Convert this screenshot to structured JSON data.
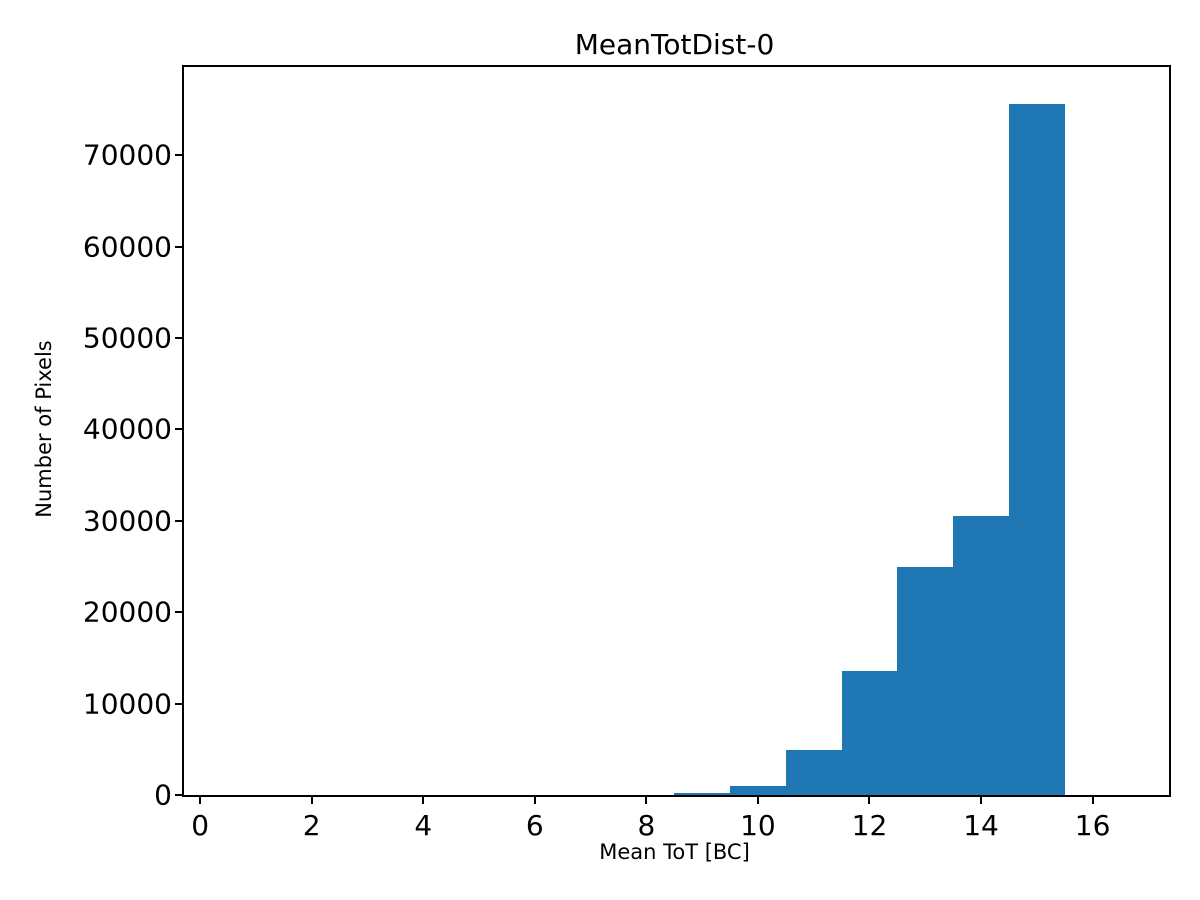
{
  "chart_data": {
    "type": "bar",
    "subtype": "histogram",
    "title": "MeanTotDist-0",
    "xlabel": "Mean ToT [BC]",
    "ylabel": "Number of Pixels",
    "bar_color": "#1f77b4",
    "axis_color": "#000000",
    "background_color": "#ffffff",
    "grid": false,
    "legend": null,
    "xlim": [
      -0.29,
      17.37
    ],
    "ylim": [
      0,
      79650
    ],
    "x_ticks": [
      0,
      2,
      4,
      6,
      8,
      10,
      12,
      14,
      16
    ],
    "y_ticks": [
      0,
      10000,
      20000,
      30000,
      40000,
      50000,
      60000,
      70000
    ],
    "bins": [
      {
        "x0": 8.5,
        "x1": 9.5,
        "count": 250
      },
      {
        "x0": 9.5,
        "x1": 10.5,
        "count": 1000
      },
      {
        "x0": 10.5,
        "x1": 11.5,
        "count": 4900
      },
      {
        "x0": 11.5,
        "x1": 12.5,
        "count": 13600
      },
      {
        "x0": 12.5,
        "x1": 13.5,
        "count": 25000
      },
      {
        "x0": 13.5,
        "x1": 14.5,
        "count": 30500
      },
      {
        "x0": 14.5,
        "x1": 15.5,
        "count": 75600
      }
    ]
  }
}
